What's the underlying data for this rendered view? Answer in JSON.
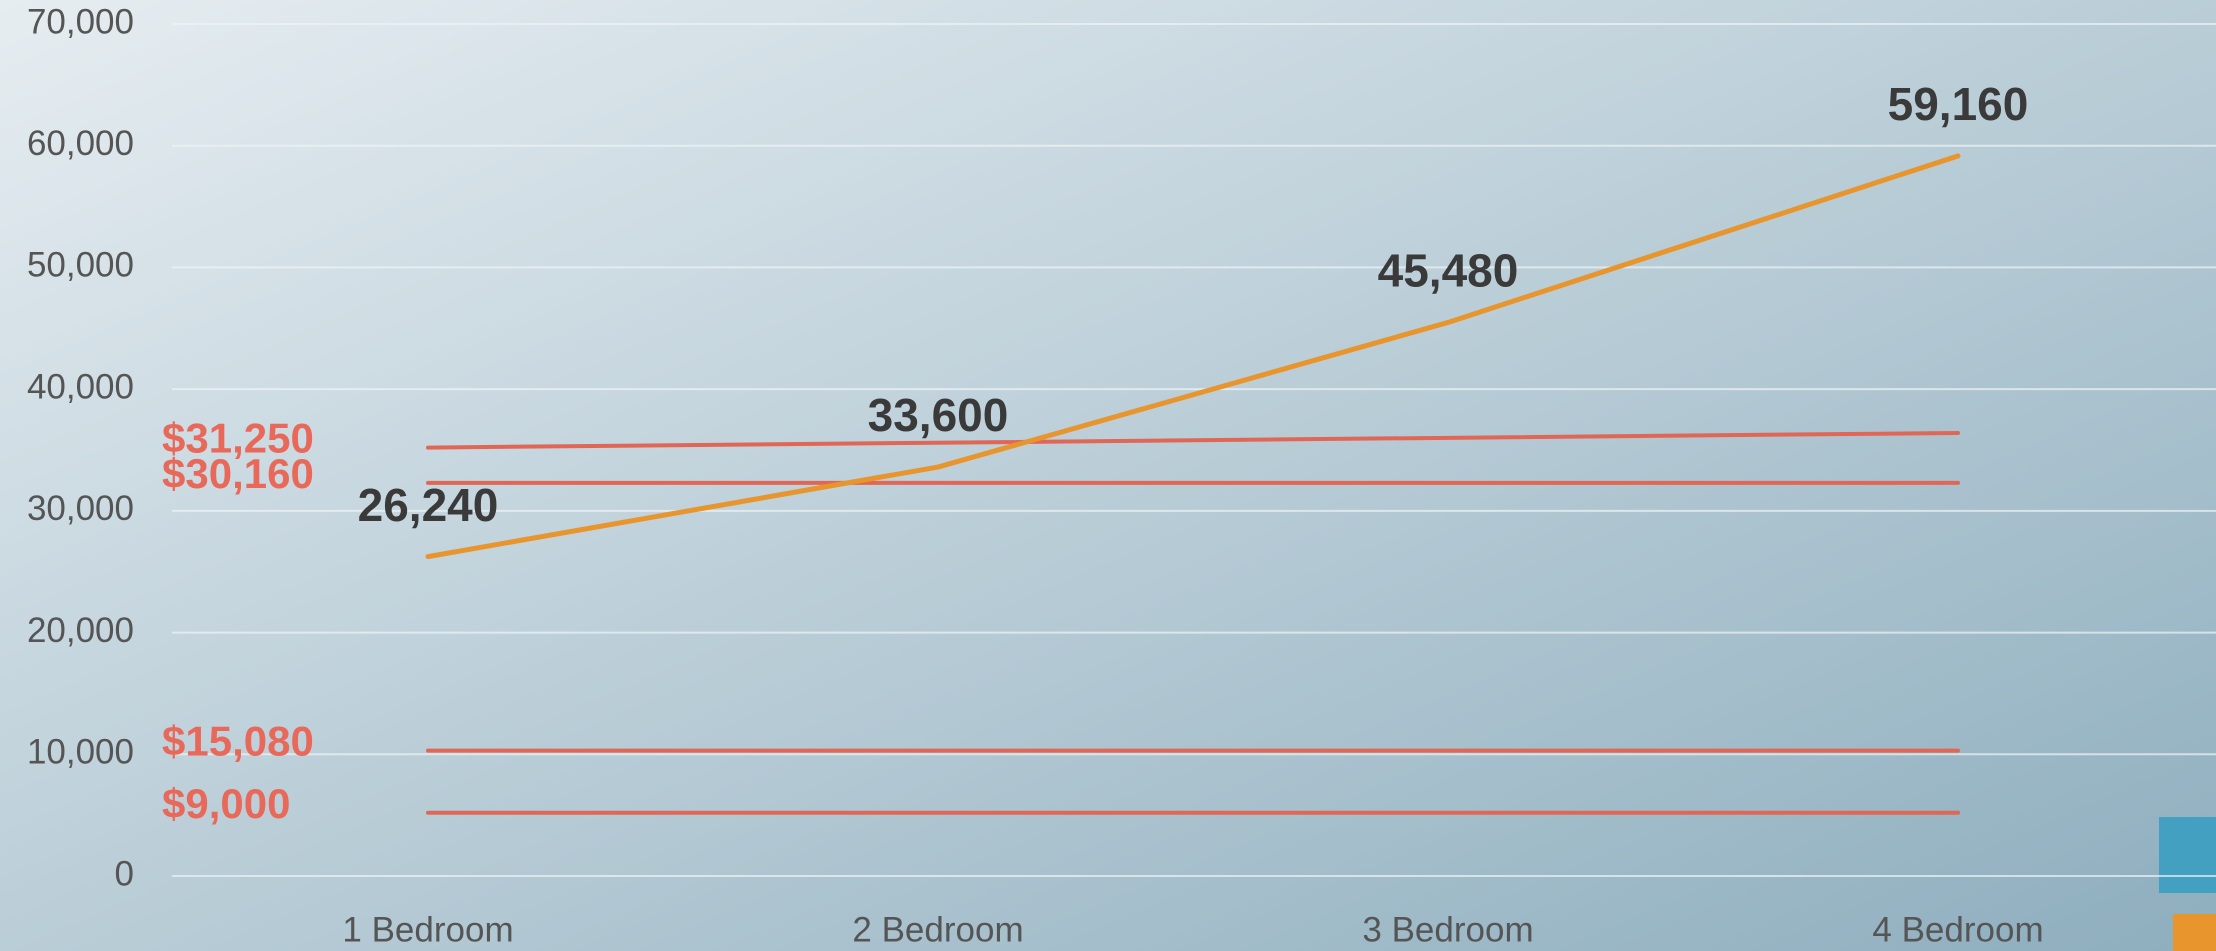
{
  "chart_data": {
    "type": "line",
    "categories": [
      "1 Bedroom",
      "2 Bedroom",
      "3 Bedroom",
      "4 Bedroom"
    ],
    "series": [
      {
        "color": "#e8952e",
        "values": [
          26240,
          33600,
          45480,
          59160
        ],
        "value_labels": [
          "26,240",
          "33,600",
          "45,480",
          "59,160"
        ]
      },
      {
        "color": "#e06655",
        "label": "$31,250",
        "values": [
          35200,
          35600,
          36000,
          36400
        ]
      },
      {
        "color": "#e06655",
        "label": "$30,160",
        "values": [
          32300,
          32300,
          32300,
          32300
        ]
      },
      {
        "color": "#e06655",
        "label": "$15,080",
        "values": [
          10300,
          10300,
          10300,
          10300
        ]
      },
      {
        "color": "#e06655",
        "label": "$9,000",
        "values": [
          5200,
          5200,
          5200,
          5200
        ]
      }
    ],
    "ylim": [
      0,
      70000
    ],
    "yticks": [
      0,
      {
        "value": 10000,
        "label": "10,000"
      },
      {
        "value": 20000,
        "label": "20,000"
      },
      {
        "value": 30000,
        "label": "30,000"
      },
      {
        "value": 40000,
        "label": "40,000"
      },
      {
        "value": 50000,
        "label": "50,000"
      },
      {
        "value": 60000,
        "label": "60,000"
      },
      {
        "value": 70000,
        "label": "70,000"
      }
    ],
    "grid": true
  }
}
